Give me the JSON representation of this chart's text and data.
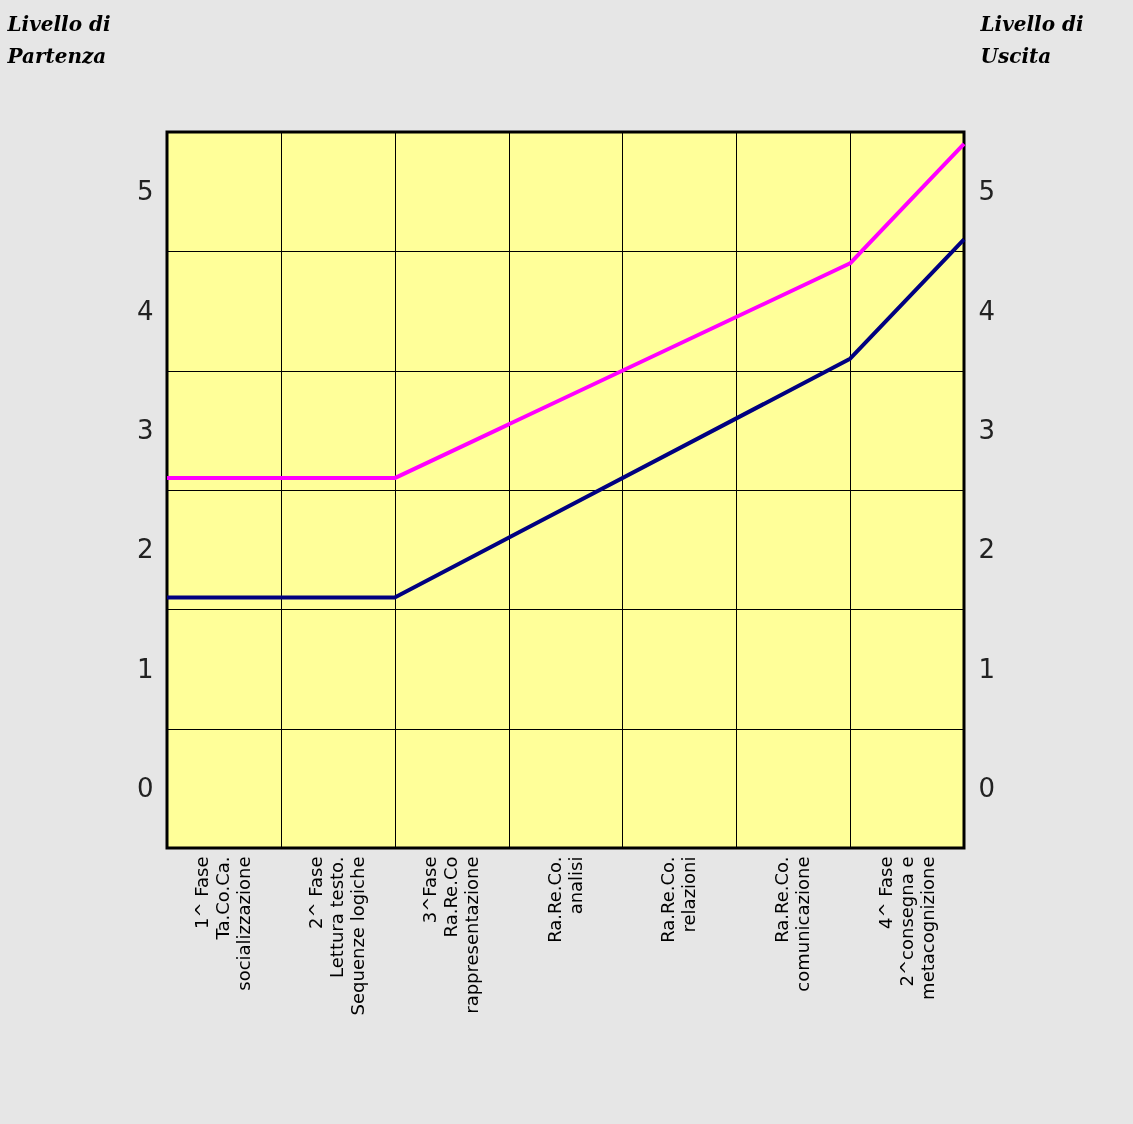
{
  "chart_data": {
    "type": "line",
    "ylabel": "Livello di Partenza",
    "y2label": "Livello di Uscita",
    "xlim": [
      0,
      7
    ],
    "xticks": [
      {
        "value": 0,
        "label": null
      },
      {
        "value": 0.5,
        "label": "1^ Fase\nTa.Co.Ca.\nsocializzazione"
      },
      {
        "value": 1,
        "label": null
      },
      {
        "value": 1.5,
        "label": "2^ Fase\nLettura testo.\nSequenze logiche"
      },
      {
        "value": 2,
        "label": null
      },
      {
        "value": 2.5,
        "label": "3^Fase\nRa.Re.Co\nrappresentazione"
      },
      {
        "value": 3,
        "label": null
      },
      {
        "value": 3.5,
        "label": "Ra.Re.Co.\nanalisi"
      },
      {
        "value": 4,
        "label": null
      },
      {
        "value": 4.5,
        "label": "Ra.Re.Co.\nrelazioni"
      },
      {
        "value": 5,
        "label": null
      },
      {
        "value": 5.5,
        "label": "Ra.Re.Co.\ncomunicazione"
      },
      {
        "value": 6,
        "label": null
      },
      {
        "value": 6.5,
        "label": "4^ Fase\n2^consegna e\nmetacognizione"
      },
      {
        "value": 7,
        "label": null
      }
    ],
    "ylim": [
      -0.5,
      5.5
    ],
    "yticks": [
      {
        "value": -0.5,
        "label": null
      },
      0,
      {
        "value": 0.5,
        "label": null
      },
      1,
      {
        "value": 1.5,
        "label": null
      },
      2,
      {
        "value": 2.5,
        "label": null
      },
      3,
      {
        "value": 3.5,
        "label": null
      },
      4,
      {
        "value": 4.5,
        "label": null
      },
      5,
      {
        "value": 5.5,
        "label": null
      }
    ],
    "y2lim": [
      -0.5,
      5.5
    ],
    "y2ticks": [
      {
        "value": -0.5,
        "label": null
      },
      0,
      {
        "value": 0.5,
        "label": null
      },
      1,
      {
        "value": 1.5,
        "label": null
      },
      2,
      {
        "value": 2.5,
        "label": null
      },
      3,
      {
        "value": 3.5,
        "label": null
      },
      4,
      {
        "value": 4.5,
        "label": null
      },
      5,
      {
        "value": 5.5,
        "label": null
      }
    ],
    "grid": true,
    "series": [
      {
        "color": "#ff00ff",
        "x": [
          0,
          2,
          6,
          7
        ],
        "values": [
          2.6,
          2.6,
          4.4,
          5.4
        ]
      },
      {
        "color": "#000080",
        "x": [
          0,
          2,
          6,
          7
        ],
        "values": [
          1.6,
          1.6,
          3.6,
          4.6
        ]
      }
    ]
  }
}
